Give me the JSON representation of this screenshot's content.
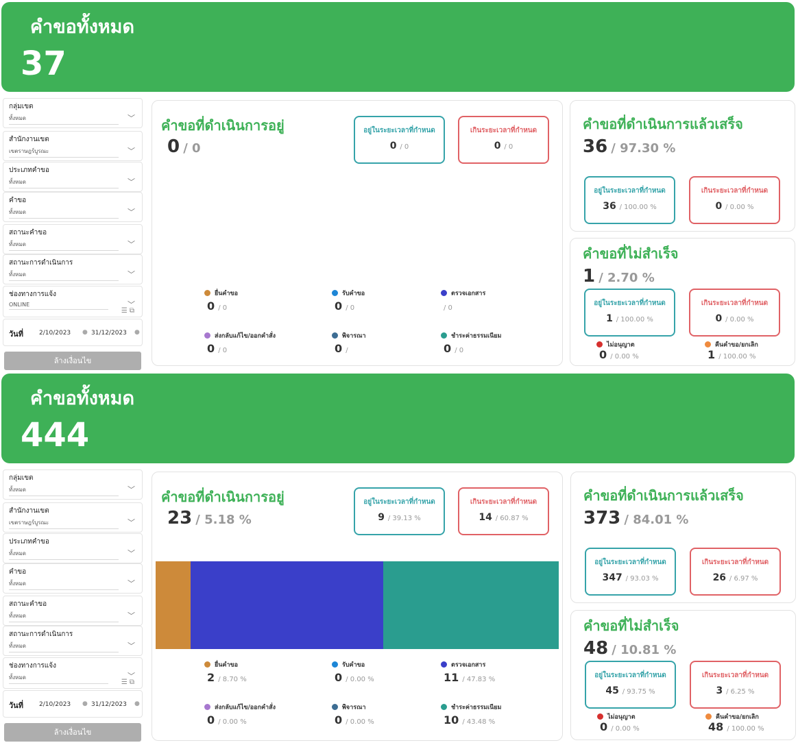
{
  "colors": {
    "banner": "#3eb157",
    "title_green": "#3eb157",
    "teal": "#35a3a9",
    "red": "#e06165",
    "legend": [
      "#cd8a3a",
      "#1d86d6",
      "#3a3fc9",
      "#a778cf",
      "#3d6d93",
      "#2a9d8f"
    ],
    "not_approved": "#d6302e",
    "returned": "#ef8b3e"
  },
  "filters": {
    "zone_group": {
      "label": "กลุ่มเขต",
      "value": "ทั้งหมด"
    },
    "office": {
      "label": "สำนักงานเขต",
      "value": "เขตราษฎร์บูรณะ"
    },
    "request_type": {
      "label": "ประเภทคำขอ",
      "value": "ทั้งหมด"
    },
    "request": {
      "label": "คำขอ",
      "value": "ทั้งหมด"
    },
    "request_status": {
      "label": "สถานะคำขอ",
      "value": "ทั้งหมด"
    },
    "process_status": {
      "label": "สถานะการดำเนินการ",
      "value": "ทั้งหมด"
    },
    "channel": {
      "label": "ช่องทางการแจ้ง"
    },
    "date_label": "วันที่",
    "date_from": "2/10/2023",
    "date_to": "31/12/2023",
    "clear_label": "ล้างเงื่อนไข"
  },
  "labels": {
    "total": "คำขอทั้งหมด",
    "in_progress": "คำขอที่ดำเนินการอยู่",
    "completed": "คำขอที่ดำเนินการแล้วเสร็จ",
    "failed": "คำขอที่ไม่สำเร็จ",
    "within": "อยู่ในระยะเวลาที่กำหนด",
    "over": "เกินระยะเวลาที่กำหนด",
    "submit": "ยื่นคำขอ",
    "receive": "รับคำขอ",
    "check_docs": "ตรวจเอกสาร",
    "return_fix": "ส่งกลับแก้ไข/ออกคำสั่ง",
    "consider": "พิจารณา",
    "pay_fee": "ชำระค่าธรรมเนียม",
    "not_approved": "ไม่อนุญาต",
    "returned_cancel": "คืนคำขอ/ยกเลิก"
  },
  "dash1": {
    "channel_value": "ONLINE",
    "total": "37",
    "in_progress": {
      "count": "0",
      "pct": "/ 0",
      "within": "0",
      "within_pct": "/ 0",
      "over": "0",
      "over_pct": "/ 0"
    },
    "legend": {
      "submit": {
        "n": "0",
        "p": "/ 0"
      },
      "receive": {
        "n": "0",
        "p": "/ 0"
      },
      "check_docs": {
        "n": "",
        "p": "/ 0"
      },
      "return_fix": {
        "n": "0",
        "p": "/ 0"
      },
      "consider": {
        "n": "0",
        "p": "/"
      },
      "pay_fee": {
        "n": "0",
        "p": "/ 0"
      }
    },
    "completed": {
      "count": "36",
      "pct": "/ 97.30 %",
      "within": "36",
      "within_pct": "/ 100.00 %",
      "over": "0",
      "over_pct": "/ 0.00 %"
    },
    "failed": {
      "count": "1",
      "pct": "/ 2.70 %",
      "within": "1",
      "within_pct": "/ 100.00 %",
      "over": "0",
      "over_pct": "/ 0.00 %",
      "not_approved": "0",
      "not_approved_pct": "/ 0.00 %",
      "returned": "1",
      "returned_pct": "/ 100.00 %"
    }
  },
  "dash2": {
    "channel_value": "ทั้งหมด",
    "total": "444",
    "in_progress": {
      "count": "23",
      "pct": "/ 5.18 %",
      "within": "9",
      "within_pct": "/ 39.13 %",
      "over": "14",
      "over_pct": "/ 60.87 %"
    },
    "legend": {
      "submit": {
        "n": "2",
        "p": "/ 8.70 %"
      },
      "receive": {
        "n": "0",
        "p": "/ 0.00 %"
      },
      "check_docs": {
        "n": "11",
        "p": "/ 47.83 %"
      },
      "return_fix": {
        "n": "0",
        "p": "/ 0.00 %"
      },
      "consider": {
        "n": "0",
        "p": "/ 0.00 %"
      },
      "pay_fee": {
        "n": "10",
        "p": "/ 43.48 %"
      }
    },
    "completed": {
      "count": "373",
      "pct": "/ 84.01 %",
      "within": "347",
      "within_pct": "/ 93.03 %",
      "over": "26",
      "over_pct": "/ 6.97 %"
    },
    "failed": {
      "count": "48",
      "pct": "/ 10.81 %",
      "within": "45",
      "within_pct": "/ 93.75 %",
      "over": "3",
      "over_pct": "/ 6.25 %",
      "not_approved": "0",
      "not_approved_pct": "/ 0.00 %",
      "returned": "48",
      "returned_pct": "/ 100.00 %"
    }
  },
  "chart_data": {
    "type": "bar",
    "stacked": "horizontal-100%",
    "categories": [
      "ยื่นคำขอ",
      "ตรวจเอกสาร",
      "ชำระค่าธรรมเนียม"
    ],
    "values": [
      2,
      11,
      10
    ],
    "colors": [
      "#cd8a3a",
      "#3a3fc9",
      "#2a9d8f"
    ]
  }
}
